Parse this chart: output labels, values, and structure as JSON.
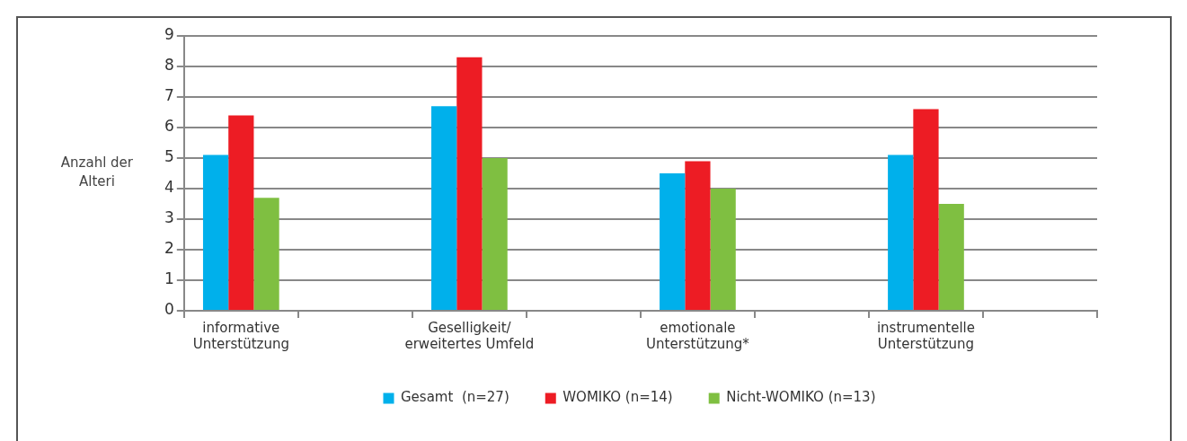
{
  "chart_data": {
    "type": "bar",
    "ylabel": "Anzahl der Alteri",
    "categories": [
      "informative Unterstützung",
      null,
      "Geselligkeit/ erweitertes Umfeld",
      null,
      "emotionale Unterstützung*",
      null,
      "instrumentelle Unterstützung",
      null
    ],
    "series": [
      {
        "name": "Gesamt  (n=27)",
        "color": "#00b0eb",
        "values": [
          5.1,
          null,
          6.7,
          null,
          4.5,
          null,
          5.1,
          null
        ]
      },
      {
        "name": "WOMIKO (n=14)",
        "color": "#ed1c24",
        "values": [
          6.4,
          null,
          8.3,
          null,
          4.9,
          null,
          6.6,
          null
        ]
      },
      {
        "name": "Nicht-WOMIKO (n=13)",
        "color": "#7fbf41",
        "values": [
          3.7,
          null,
          5.0,
          null,
          4.0,
          null,
          3.5,
          null
        ]
      }
    ],
    "ylim": [
      0,
      9
    ],
    "yticks": [
      0,
      1,
      2,
      3,
      4,
      5,
      6,
      7,
      8,
      9
    ],
    "grid": "y",
    "legend": "bottom"
  }
}
